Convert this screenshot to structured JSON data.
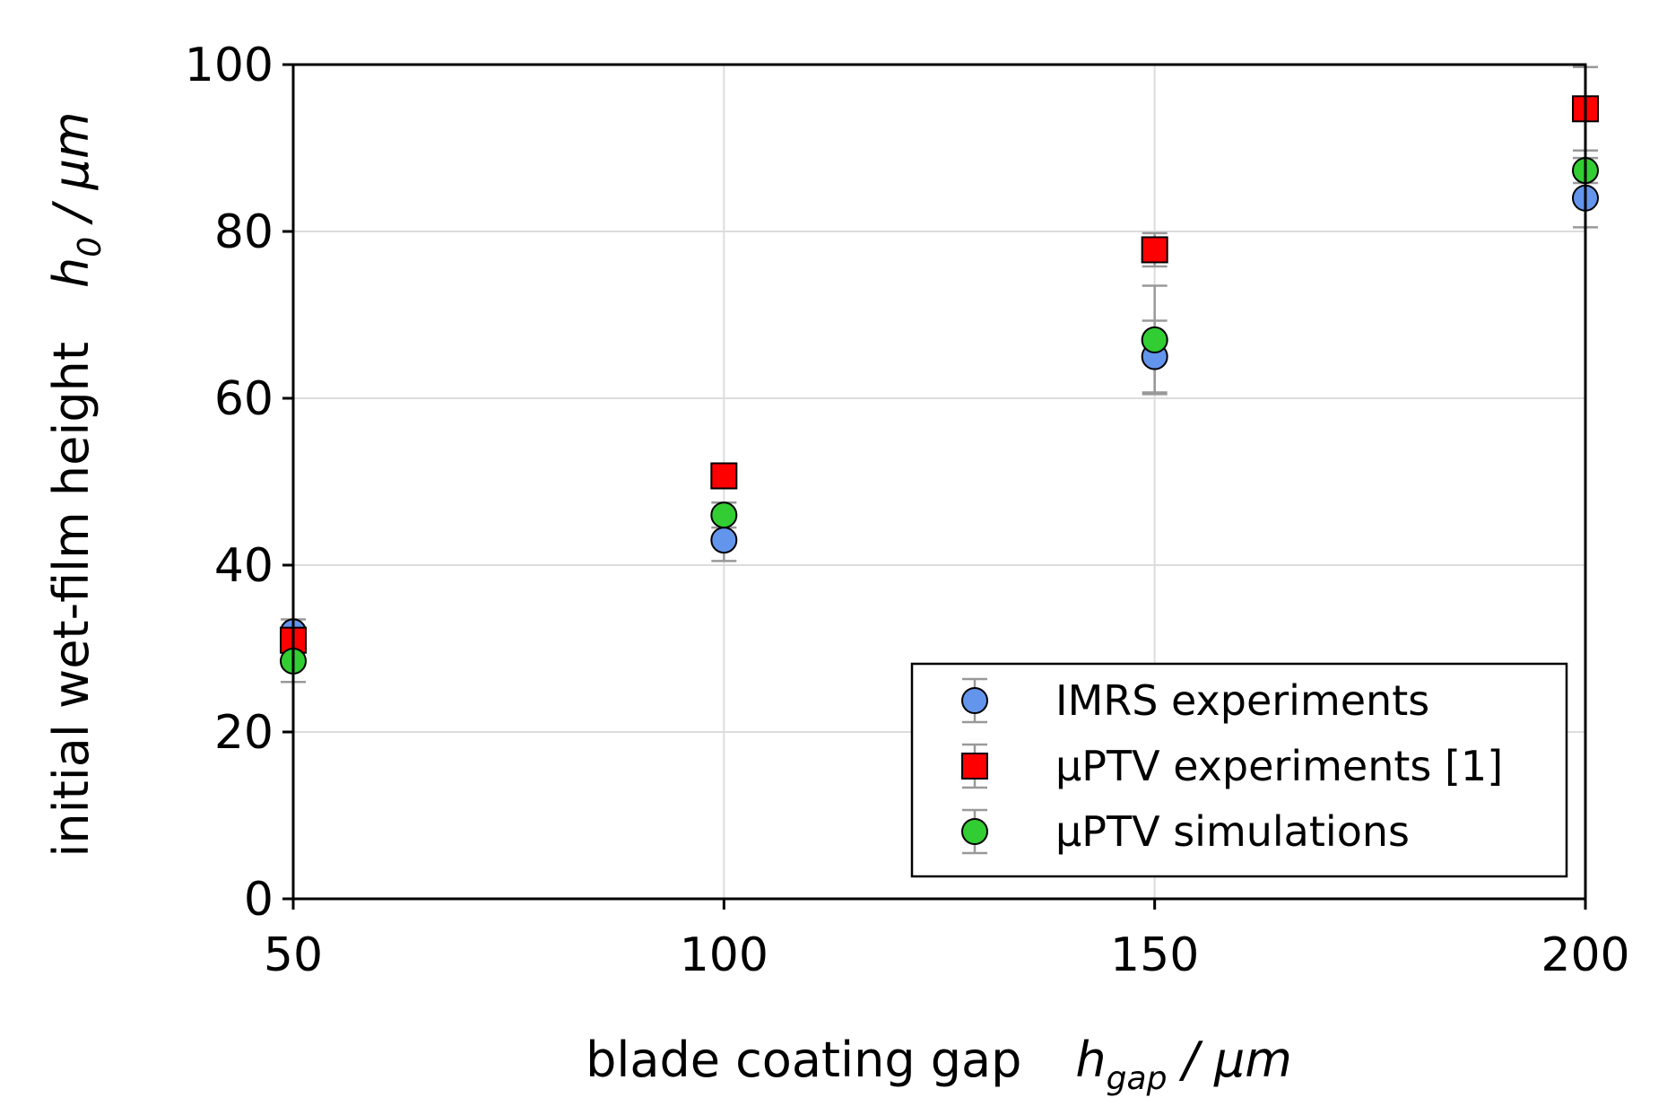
{
  "chart_data": {
    "type": "scatter",
    "xlabel": {
      "text": "blade coating gap",
      "var_main": "h",
      "var_sub": "gap",
      "unit": " / μm"
    },
    "ylabel": {
      "text": "initial wet-film height",
      "var_main": "h",
      "var_sub": "0",
      "unit": " / μm"
    },
    "xlim": [
      50,
      200
    ],
    "ylim": [
      0,
      100
    ],
    "xticks": [
      50,
      100,
      150,
      200
    ],
    "yticks": [
      0,
      20,
      40,
      60,
      80,
      100
    ],
    "grid": true,
    "legend_position": "lower-right",
    "series": [
      {
        "name": "IMRS experiments",
        "marker": "circle",
        "color": "#6495ED",
        "x": [
          50,
          100,
          150,
          200
        ],
        "y": [
          32,
          43,
          65,
          84
        ],
        "err": [
          1.5,
          2.5,
          4.3,
          3.5
        ]
      },
      {
        "name": "μPTV experiments [1]",
        "marker": "square",
        "color": "#FF0000",
        "x": [
          50,
          100,
          150,
          200
        ],
        "y": [
          31,
          50.7,
          77.8,
          94.7
        ],
        "err": [
          1.5,
          1.0,
          2.0,
          5.0
        ]
      },
      {
        "name": "μPTV simulations",
        "marker": "circle",
        "color": "#32CD32",
        "x": [
          50,
          100,
          150,
          200
        ],
        "y": [
          28.5,
          46,
          67,
          87.3
        ],
        "err": [
          2.5,
          1.5,
          6.5,
          1.5
        ]
      }
    ]
  }
}
